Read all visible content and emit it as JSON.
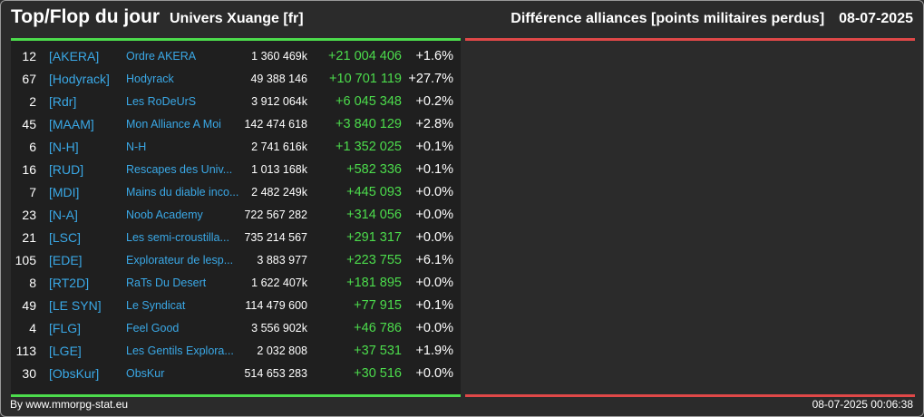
{
  "header": {
    "title": "Top/Flop du jour",
    "universe": "Univers Xuange [fr]",
    "metric": "Différence alliances [points militaires perdus]",
    "date": "08-07-2025"
  },
  "top_rows": [
    {
      "rank": "12",
      "tag": "[AKERA]",
      "name": "Ordre AKERA",
      "points": "1 360 469k",
      "diff": "+21 004 406",
      "pct": "+1.6%"
    },
    {
      "rank": "67",
      "tag": "[Hodyrack]",
      "name": "Hodyrack",
      "points": "49 388 146",
      "diff": "+10 701 119",
      "pct": "+27.7%"
    },
    {
      "rank": "2",
      "tag": "[Rdr]",
      "name": "Les RoDeUrS",
      "points": "3 912 064k",
      "diff": "+6 045 348",
      "pct": "+0.2%"
    },
    {
      "rank": "45",
      "tag": "[MAAM]",
      "name": "Mon Alliance A Moi",
      "points": "142 474 618",
      "diff": "+3 840 129",
      "pct": "+2.8%"
    },
    {
      "rank": "6",
      "tag": "[N-H]",
      "name": "N-H",
      "points": "2 741 616k",
      "diff": "+1 352 025",
      "pct": "+0.1%"
    },
    {
      "rank": "16",
      "tag": "[RUD]",
      "name": "Rescapes des Univ...",
      "points": "1 013 168k",
      "diff": "+582 336",
      "pct": "+0.1%"
    },
    {
      "rank": "7",
      "tag": "[MDI]",
      "name": "Mains du diable inco...",
      "points": "2 482 249k",
      "diff": "+445 093",
      "pct": "+0.0%"
    },
    {
      "rank": "23",
      "tag": "[N-A]",
      "name": "Noob Academy",
      "points": "722 567 282",
      "diff": "+314 056",
      "pct": "+0.0%"
    },
    {
      "rank": "21",
      "tag": "[LSC]",
      "name": "Les semi-croustilla...",
      "points": "735 214 567",
      "diff": "+291 317",
      "pct": "+0.0%"
    },
    {
      "rank": "105",
      "tag": "[EDE]",
      "name": "Explorateur de lesp...",
      "points": "3 883 977",
      "diff": "+223 755",
      "pct": "+6.1%"
    },
    {
      "rank": "8",
      "tag": "[RT2D]",
      "name": "RaTs Du Desert",
      "points": "1 622 407k",
      "diff": "+181 895",
      "pct": "+0.0%"
    },
    {
      "rank": "49",
      "tag": "[LE SYN]",
      "name": "Le Syndicat",
      "points": "114 479 600",
      "diff": "+77 915",
      "pct": "+0.1%"
    },
    {
      "rank": "4",
      "tag": "[FLG]",
      "name": "Feel Good",
      "points": "3 556 902k",
      "diff": "+46 786",
      "pct": "+0.0%"
    },
    {
      "rank": "113",
      "tag": "[LGE]",
      "name": "Les Gentils Explora...",
      "points": "2 032 808",
      "diff": "+37 531",
      "pct": "+1.9%"
    },
    {
      "rank": "30",
      "tag": "[ObsKur]",
      "name": "ObsKur",
      "points": "514 653 283",
      "diff": "+30 516",
      "pct": "+0.0%"
    }
  ],
  "flop_rows": [],
  "footer": {
    "credit": "By www.mmorpg-stat.eu",
    "timestamp": "08-07-2025 00:06:38"
  },
  "colors": {
    "background": "#2b2b2b",
    "panel": "#1f1f1f",
    "top_accent": "#4cdc4c",
    "flop_accent": "#e04848",
    "link": "#3aa8e6"
  }
}
